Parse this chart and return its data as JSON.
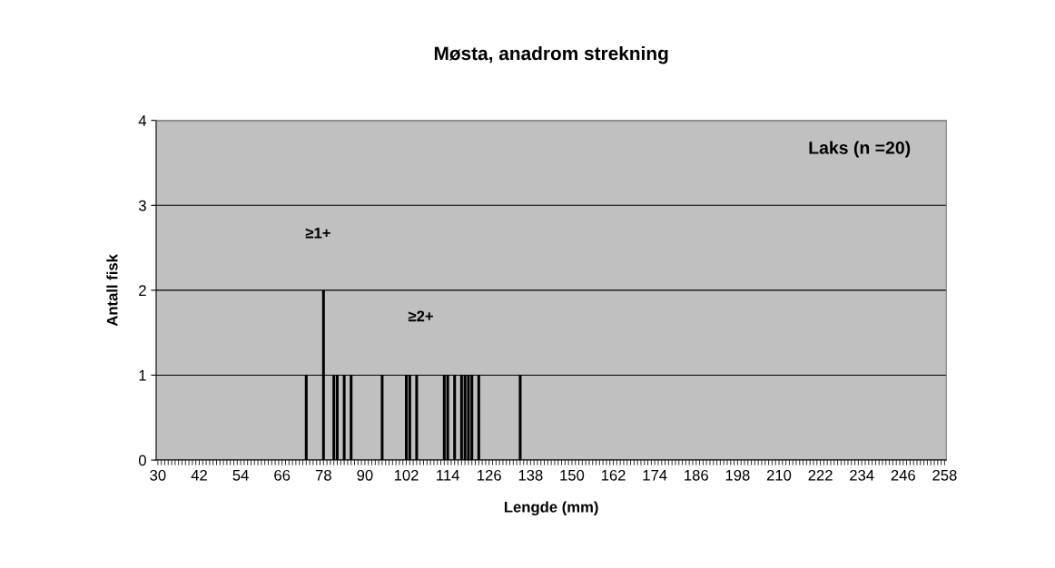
{
  "chart_data": {
    "type": "bar",
    "title": "Møsta, anadrom strekning",
    "xlabel": "Lengde (mm)",
    "ylabel": "Antall fisk",
    "categories": [
      "30",
      null,
      null,
      null,
      null,
      null,
      null,
      null,
      null,
      null,
      null,
      null,
      "42",
      null,
      null,
      null,
      null,
      null,
      null,
      null,
      null,
      null,
      null,
      null,
      "54",
      null,
      null,
      null,
      null,
      null,
      null,
      null,
      null,
      null,
      null,
      null,
      "66",
      null,
      null,
      null,
      null,
      null,
      null,
      null,
      null,
      null,
      null,
      null,
      "78",
      null,
      null,
      null,
      null,
      null,
      null,
      null,
      null,
      null,
      null,
      null,
      "90",
      null,
      null,
      null,
      null,
      null,
      null,
      null,
      null,
      null,
      null,
      null,
      "102",
      null,
      null,
      null,
      null,
      null,
      null,
      null,
      null,
      null,
      null,
      null,
      "114",
      null,
      null,
      null,
      null,
      null,
      null,
      null,
      null,
      null,
      null,
      null,
      "126",
      null,
      null,
      null,
      null,
      null,
      null,
      null,
      null,
      null,
      null,
      null,
      "138",
      null,
      null,
      null,
      null,
      null,
      null,
      null,
      null,
      null,
      null,
      null,
      "150",
      null,
      null,
      null,
      null,
      null,
      null,
      null,
      null,
      null,
      null,
      null,
      "162",
      null,
      null,
      null,
      null,
      null,
      null,
      null,
      null,
      null,
      null,
      null,
      "174",
      null,
      null,
      null,
      null,
      null,
      null,
      null,
      null,
      null,
      null,
      null,
      "186",
      null,
      null,
      null,
      null,
      null,
      null,
      null,
      null,
      null,
      null,
      null,
      "198",
      null,
      null,
      null,
      null,
      null,
      null,
      null,
      null,
      null,
      null,
      null,
      "210",
      null,
      null,
      null,
      null,
      null,
      null,
      null,
      null,
      null,
      null,
      null,
      "222",
      null,
      null,
      null,
      null,
      null,
      null,
      null,
      null,
      null,
      null,
      null,
      "234",
      null,
      null,
      null,
      null,
      null,
      null,
      null,
      null,
      null,
      null,
      null,
      "246",
      null,
      null,
      null,
      null,
      null,
      null,
      null,
      null,
      null,
      null,
      null,
      "258"
    ],
    "values": [
      0,
      0,
      0,
      0,
      0,
      0,
      0,
      0,
      0,
      0,
      0,
      0,
      0,
      0,
      0,
      0,
      0,
      0,
      0,
      0,
      0,
      0,
      0,
      0,
      0,
      0,
      0,
      0,
      0,
      0,
      0,
      0,
      0,
      0,
      0,
      0,
      0,
      0,
      0,
      0,
      0,
      0,
      0,
      1,
      0,
      0,
      0,
      0,
      2,
      0,
      0,
      1,
      1,
      0,
      1,
      0,
      1,
      0,
      0,
      0,
      0,
      0,
      0,
      0,
      0,
      1,
      0,
      0,
      0,
      0,
      0,
      0,
      1,
      1,
      0,
      1,
      0,
      0,
      0,
      0,
      0,
      0,
      0,
      1,
      1,
      0,
      1,
      0,
      1,
      1,
      1,
      1,
      0,
      1,
      0,
      0,
      0,
      0,
      0,
      0,
      0,
      0,
      0,
      0,
      0,
      1,
      0,
      0,
      0,
      0,
      0,
      0,
      0,
      0,
      0,
      0,
      0,
      0,
      0,
      0,
      0,
      0,
      0,
      0,
      0,
      0,
      0,
      0,
      0,
      0,
      0,
      0,
      0,
      0,
      0,
      0,
      0,
      0,
      0,
      0,
      0,
      0,
      0,
      0,
      0,
      0,
      0,
      0,
      0,
      0,
      0,
      0,
      0,
      0,
      0,
      0,
      0,
      0,
      0,
      0,
      0,
      0,
      0,
      0,
      0,
      0,
      0,
      0,
      0,
      0,
      0,
      0,
      0,
      0,
      0,
      0,
      0,
      0,
      0,
      0,
      0,
      0,
      0,
      0,
      0,
      0,
      0,
      0,
      0,
      0,
      0,
      0,
      0,
      0,
      0,
      0,
      0,
      0,
      0,
      0,
      0,
      0,
      0,
      0,
      0,
      0,
      0,
      0,
      0,
      0,
      0,
      0,
      0,
      0,
      0,
      0,
      0,
      0,
      0,
      0,
      0,
      0,
      0,
      0,
      0,
      0,
      0,
      0,
      0
    ],
    "color": "#000000",
    "ylim": [
      0,
      4
    ],
    "yticks": [
      0,
      1,
      2,
      3,
      4
    ],
    "grid": "y",
    "legend": false,
    "annotations": [
      "Laks (n =20)",
      "≥1+",
      "≥2+"
    ]
  }
}
